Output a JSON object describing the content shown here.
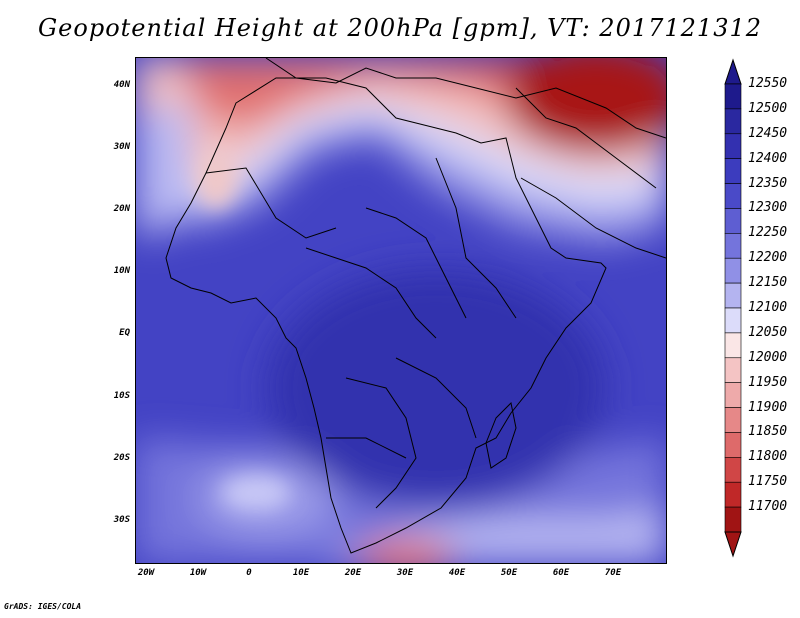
{
  "title": "Geopotential Height at 200hPa [gpm], VT: 2017121312",
  "credit": "GrADS: IGES/COLA",
  "lat_labels": [
    "40N",
    "30N",
    "20N",
    "10N",
    "EQ",
    "10S",
    "20S",
    "30S"
  ],
  "lon_labels": [
    "20W",
    "10W",
    "0",
    "10E",
    "20E",
    "30E",
    "40E",
    "50E",
    "60E",
    "70E"
  ],
  "colorbar": {
    "labels": [
      "12550",
      "12500",
      "12450",
      "12400",
      "12350",
      "12300",
      "12250",
      "12200",
      "12150",
      "12100",
      "12050",
      "12000",
      "11950",
      "11900",
      "11850",
      "11800",
      "11750",
      "11700"
    ],
    "colors": [
      "#1e1a8c",
      "#2a28a0",
      "#3330b0",
      "#3c3cbe",
      "#4a4ac8",
      "#5e5ed2",
      "#7474dc",
      "#9090e6",
      "#b4b4f0",
      "#dcdcfa",
      "#fae6e6",
      "#f4c4c4",
      "#eeaaaa",
      "#e68888",
      "#de6a6a",
      "#d04646",
      "#c02828",
      "#a01414"
    ]
  },
  "colors": {
    "ocean_base": "#3c3cbe",
    "hot": "#a01414"
  }
}
